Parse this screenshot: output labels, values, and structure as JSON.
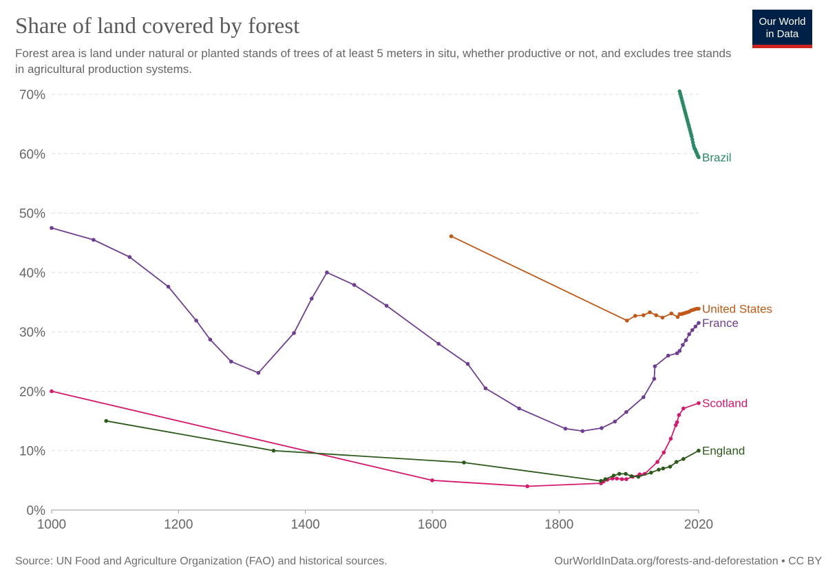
{
  "title": "Share of land covered by forest",
  "subtitle": "Forest area is land under natural or planted stands of trees of at least 5 meters in situ, whether productive or not, and excludes tree stands in agricultural production systems.",
  "logo": {
    "line1": "Our World",
    "line2": "in Data",
    "colors": {
      "bg": "#002147",
      "bar": "#ce261e"
    }
  },
  "source": "Source: UN Food and Agriculture Organization (FAO) and historical sources.",
  "credit": "OurWorldInData.org/forests-and-deforestation • CC BY",
  "chart_data": {
    "type": "line",
    "xlim": [
      1000,
      2020
    ],
    "ylim": [
      0,
      70
    ],
    "x_ticks": [
      "1000",
      "1200",
      "1400",
      "1600",
      "1800",
      "2020"
    ],
    "y_ticks": [
      "0%",
      "10%",
      "20%",
      "30%",
      "40%",
      "50%",
      "60%",
      "70%"
    ],
    "grid": "horizontal dashed",
    "legend": "inline labels at line ends",
    "series": [
      {
        "name": "Brazil",
        "color": "#2a8a66",
        "x": [
          1990,
          1991,
          1992,
          1993,
          1994,
          1995,
          1996,
          1997,
          1998,
          1999,
          2000,
          2001,
          2002,
          2003,
          2004,
          2005,
          2006,
          2007,
          2008,
          2009,
          2010,
          2011,
          2012,
          2013,
          2014,
          2015,
          2016,
          2017,
          2018,
          2019,
          2020
        ],
        "y": [
          70.5,
          70.1,
          69.7,
          69.3,
          68.9,
          68.5,
          68.1,
          67.7,
          67.3,
          66.9,
          66.5,
          66.1,
          65.7,
          65.3,
          64.9,
          64.5,
          64.1,
          63.7,
          63.3,
          62.9,
          62.4,
          61.9,
          61.4,
          61.0,
          60.8,
          60.6,
          60.3,
          60.1,
          59.8,
          59.6,
          59.4
        ]
      },
      {
        "name": "United States",
        "color": "#c05917",
        "x": [
          1630,
          1907,
          1920,
          1933,
          1943,
          1953,
          1963,
          1977,
          1987,
          1990,
          1993,
          1996,
          1999,
          2002,
          2005,
          2008,
          2011,
          2014,
          2017,
          2020
        ],
        "y": [
          46.1,
          31.9,
          32.7,
          32.8,
          33.3,
          32.8,
          32.4,
          33.1,
          32.5,
          33.0,
          33.0,
          33.1,
          33.2,
          33.3,
          33.4,
          33.6,
          33.7,
          33.8,
          33.9,
          33.9
        ]
      },
      {
        "name": "France",
        "color": "#6d3e91",
        "x": [
          1000,
          1066,
          1123,
          1184,
          1228,
          1250,
          1283,
          1326,
          1382,
          1410,
          1434,
          1477,
          1528,
          1610,
          1656,
          1684,
          1737,
          1810,
          1837,
          1867,
          1888,
          1906,
          1933,
          1950,
          1951,
          1972,
          1986,
          1990,
          1995,
          2000,
          2005,
          2010,
          2015,
          2020
        ],
        "y": [
          47.5,
          45.5,
          42.6,
          37.6,
          31.9,
          28.7,
          25.0,
          23.1,
          29.8,
          35.6,
          40.0,
          37.9,
          34.4,
          28.0,
          24.6,
          20.5,
          17.1,
          13.7,
          13.3,
          13.8,
          14.9,
          16.5,
          19.0,
          22.1,
          24.2,
          26.0,
          26.4,
          26.8,
          27.8,
          28.6,
          29.6,
          30.3,
          30.9,
          31.5
        ]
      },
      {
        "name": "Scotland",
        "color": "#d6186d",
        "x": [
          1000,
          1600,
          1750,
          1866,
          1870,
          1876,
          1884,
          1891,
          1899,
          1906,
          1916,
          1927,
          1935,
          1955,
          1965,
          1976,
          1984,
          1986,
          1989,
          1996,
          2020
        ],
        "y": [
          20.0,
          5.0,
          4.0,
          4.5,
          4.8,
          5.1,
          5.3,
          5.3,
          5.2,
          5.2,
          5.6,
          6.0,
          6.1,
          8.1,
          9.7,
          12.0,
          14.3,
          14.8,
          16.0,
          17.1,
          18.0
        ]
      },
      {
        "name": "England",
        "color": "#2d5a1b",
        "x": [
          1086,
          1350,
          1650,
          1866,
          1873,
          1886,
          1895,
          1905,
          1914,
          1925,
          1945,
          1957,
          1964,
          1975,
          1985,
          1996,
          2020
        ],
        "y": [
          15.0,
          10.0,
          8.0,
          4.9,
          5.2,
          5.8,
          6.1,
          6.1,
          5.7,
          5.6,
          6.3,
          6.8,
          7.0,
          7.3,
          8.1,
          8.6,
          10.0
        ]
      }
    ]
  }
}
